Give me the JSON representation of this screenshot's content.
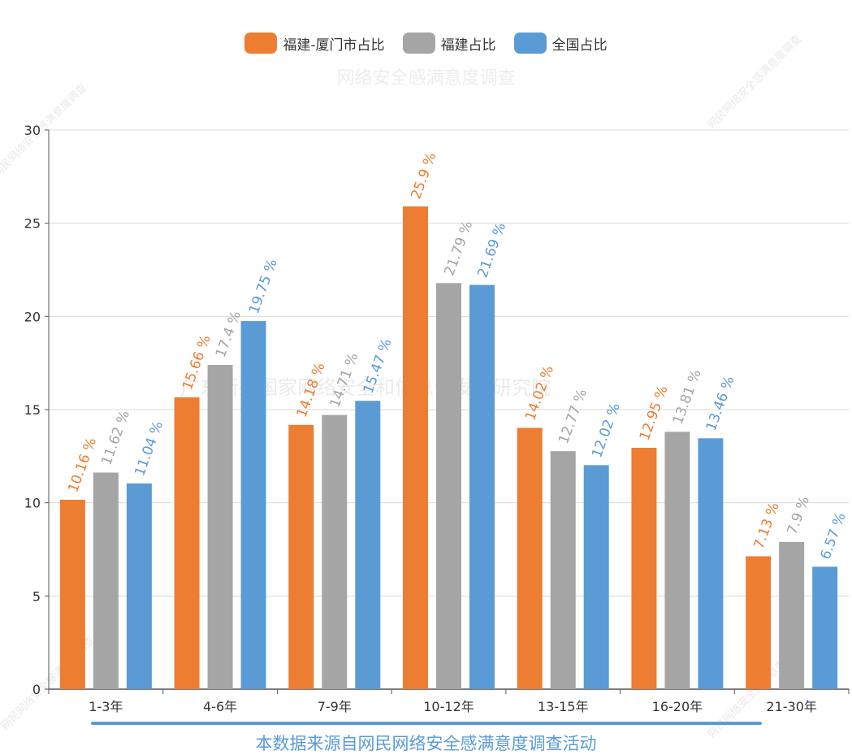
{
  "watermarks": {
    "title": "网络安全感满意度调查",
    "middle": "广东新兴国家网络安全和信息化发展研究院",
    "corner": "网民网络安全感满意度调查"
  },
  "footer": {
    "text": "本数据来源自网民网络安全感满意度调查活动"
  },
  "chart_data": {
    "type": "bar",
    "title": "",
    "xlabel": "",
    "ylabel": "",
    "categories": [
      "1-3年",
      "4-6年",
      "7-9年",
      "10-12年",
      "13-15年",
      "16-20年",
      "21-30年"
    ],
    "ylim": [
      0,
      30
    ],
    "yticks": [
      0,
      5,
      10,
      15,
      20,
      25,
      30
    ],
    "grid": true,
    "legend_position": "top-center",
    "label_suffix": " %",
    "series": [
      {
        "name": "福建-厦门市占比",
        "color": "#ed7d31",
        "values": [
          10.16,
          15.66,
          14.18,
          25.9,
          14.02,
          12.95,
          7.13
        ]
      },
      {
        "name": "福建占比",
        "color": "#a5a5a5",
        "values": [
          11.62,
          17.4,
          14.71,
          21.79,
          12.77,
          13.81,
          7.9
        ]
      },
      {
        "name": "全国占比",
        "color": "#5b9bd5",
        "values": [
          11.04,
          19.75,
          15.47,
          21.69,
          12.02,
          13.46,
          6.57
        ]
      }
    ]
  }
}
